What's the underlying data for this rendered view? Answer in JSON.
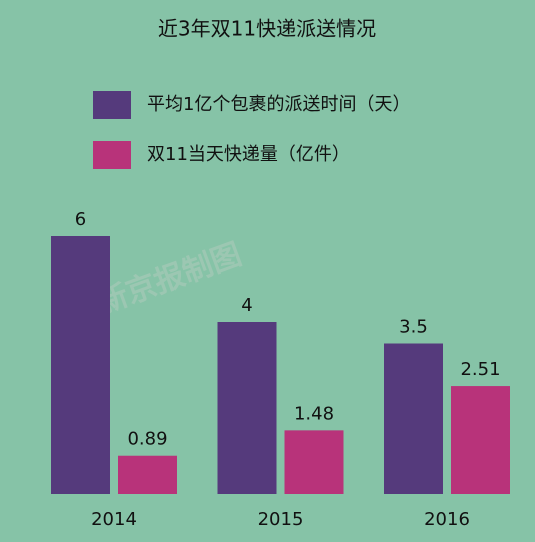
{
  "chart_data": {
    "type": "bar",
    "title": "近3年双11快递派送情况",
    "categories": [
      "2014",
      "2015",
      "2016"
    ],
    "series": [
      {
        "name": "平均1亿个包裹的派送时间（天）",
        "color": "#553a7c",
        "values": [
          6,
          4,
          3.5
        ]
      },
      {
        "name": "双11当天快递量（亿件）",
        "color": "#b8337a",
        "values": [
          0.89,
          1.48,
          2.51
        ]
      }
    ],
    "watermark": "新京报制图"
  }
}
